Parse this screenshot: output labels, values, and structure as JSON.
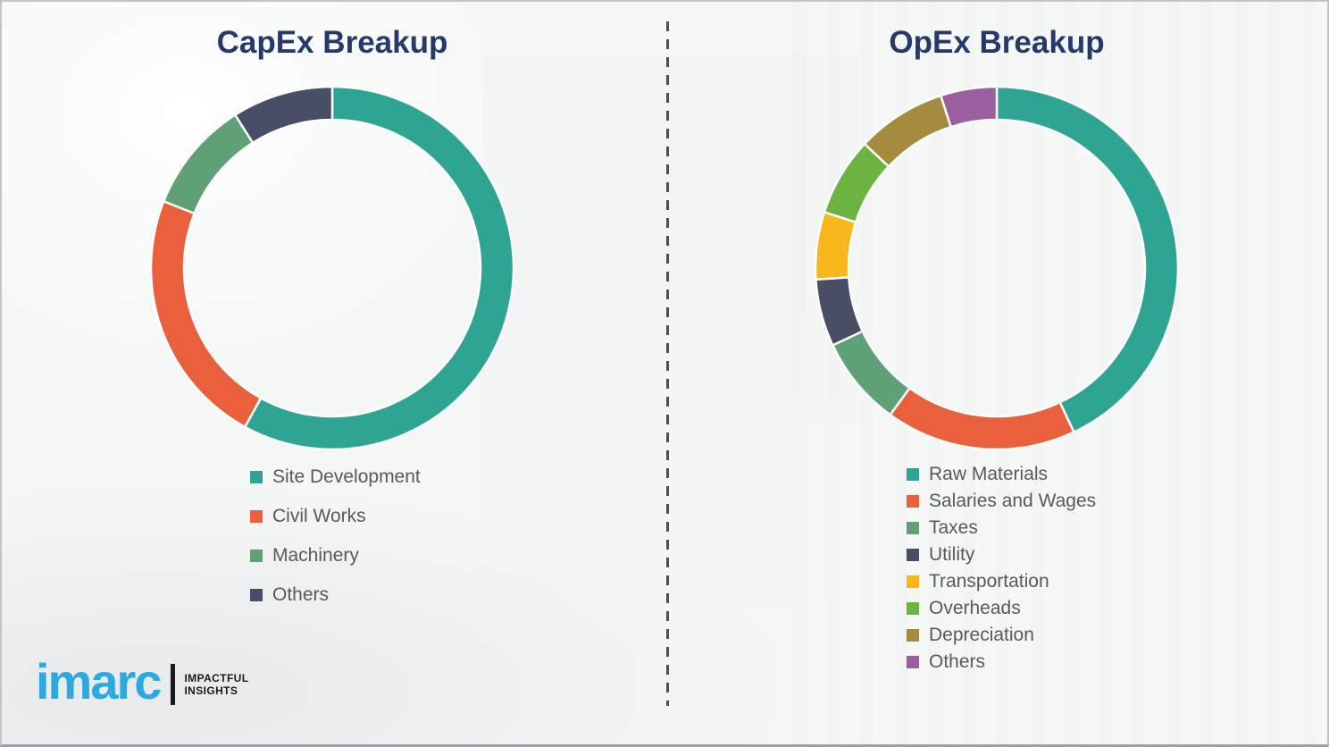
{
  "chart_data": [
    {
      "type": "pie",
      "subtype": "donut",
      "title": "CapEx Breakup",
      "categories": [
        "Site Development",
        "Civil Works",
        "Machinery",
        "Others"
      ],
      "values": [
        58,
        23,
        10,
        9
      ],
      "unit": "percent (estimated from arc angles, no data labels shown)",
      "colors": [
        "#2ea493",
        "#e8613c",
        "#5fa077",
        "#474e66"
      ],
      "legend_position": "below chart, left-aligned",
      "start_angle_deg": 0,
      "direction": "clockwise",
      "slice_separator_color": "#ffffff"
    },
    {
      "type": "pie",
      "subtype": "donut",
      "title": "OpEx Breakup",
      "categories": [
        "Raw Materials",
        "Salaries and Wages",
        "Taxes",
        "Utility",
        "Transportation",
        "Overheads",
        "Depreciation",
        "Others"
      ],
      "values": [
        43,
        17,
        8,
        6,
        6,
        7,
        8,
        5
      ],
      "unit": "percent (estimated from arc angles, no data labels shown)",
      "colors": [
        "#2ea493",
        "#e8613c",
        "#5fa077",
        "#474e66",
        "#f7b71d",
        "#6cb33f",
        "#a58b3e",
        "#9b5f9e"
      ],
      "legend_position": "below chart, left-aligned",
      "start_angle_deg": 0,
      "direction": "clockwise",
      "slice_separator_color": "#ffffff"
    }
  ],
  "logo": {
    "brand": "imarc",
    "tagline_line1": "IMPACTFUL",
    "tagline_line2": "INSIGHTS",
    "brand_color": "#2baae1"
  },
  "style": {
    "title_color": "#243a6b",
    "legend_text_color": "#595959",
    "background_color": "#f5f6f6",
    "divider_color": "#4f4f4f"
  }
}
